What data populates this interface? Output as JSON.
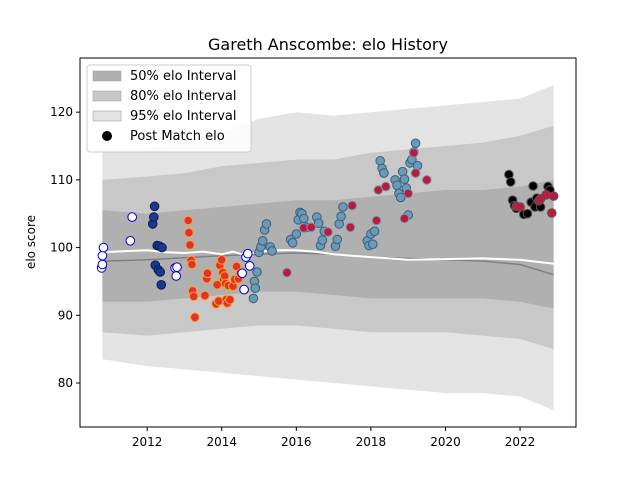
{
  "chart_data": {
    "type": "scatter",
    "title": "Gareth Anscombe: elo History",
    "xlabel": "",
    "ylabel": "elo score",
    "xlim": [
      2010.2,
      2023.5
    ],
    "ylim": [
      73.5,
      128
    ],
    "x_ticks": [
      2012,
      2014,
      2016,
      2018,
      2020,
      2022
    ],
    "y_ticks": [
      80,
      90,
      100,
      110,
      120
    ],
    "grid": false,
    "legend_position": "top-left",
    "legend": [
      {
        "label": "50% elo Interval",
        "kind": "patch",
        "color": "#b0b0b0"
      },
      {
        "label": "80% elo Interval",
        "kind": "patch",
        "color": "#c8c8c8"
      },
      {
        "label": "95% elo Interval",
        "kind": "patch",
        "color": "#e3e3e3"
      },
      {
        "label": "Post Match elo",
        "kind": "marker",
        "color": "#000000"
      }
    ],
    "bands": [
      {
        "name": "95% elo Interval",
        "color": "#e3e3e3",
        "x": [
          2010.8,
          2012.0,
          2013.0,
          2014.0,
          2015.0,
          2016.0,
          2017.0,
          2018.0,
          2019.0,
          2020.0,
          2021.0,
          2022.0,
          2022.9
        ],
        "lower": [
          83.5,
          82.5,
          82.0,
          81.5,
          81.0,
          80.5,
          80.0,
          79.5,
          79.0,
          78.5,
          78.5,
          78.0,
          76.0
        ],
        "upper": [
          114.0,
          114.5,
          116.0,
          117.0,
          119.0,
          120.0,
          119.5,
          120.0,
          120.5,
          121.0,
          121.5,
          122.0,
          124.0
        ]
      },
      {
        "name": "80% elo Interval",
        "color": "#c8c8c8",
        "x": [
          2010.8,
          2012.0,
          2013.0,
          2014.0,
          2015.0,
          2016.0,
          2017.0,
          2018.0,
          2019.0,
          2020.0,
          2021.0,
          2022.0,
          2022.9
        ],
        "lower": [
          87.5,
          87.0,
          87.5,
          88.0,
          88.5,
          88.5,
          88.0,
          87.5,
          87.5,
          87.5,
          87.0,
          86.5,
          85.0
        ],
        "upper": [
          110.0,
          110.5,
          111.0,
          112.0,
          112.5,
          113.0,
          113.0,
          114.0,
          114.5,
          115.0,
          115.5,
          116.5,
          118.0
        ]
      },
      {
        "name": "50% elo Interval",
        "color": "#b0b0b0",
        "x": [
          2010.8,
          2012.0,
          2013.0,
          2014.0,
          2015.0,
          2016.0,
          2017.0,
          2018.0,
          2019.0,
          2020.0,
          2021.0,
          2022.0,
          2022.9
        ],
        "lower": [
          92.0,
          92.0,
          92.5,
          93.0,
          93.5,
          93.5,
          93.0,
          92.5,
          92.5,
          92.5,
          92.5,
          92.0,
          91.0
        ],
        "upper": [
          105.5,
          105.0,
          105.5,
          106.0,
          106.5,
          107.0,
          107.0,
          107.5,
          108.0,
          108.5,
          108.5,
          109.0,
          110.0
        ]
      }
    ],
    "lines": [
      {
        "name": "",
        "color": "#808080",
        "x": [
          2010.8,
          2012.0,
          2013.0,
          2014.0,
          2015.0,
          2016.0,
          2017.0,
          2018.0,
          2019.0,
          2020.0,
          2021.0,
          2022.0,
          2022.9
        ],
        "y": [
          98.0,
          98.2,
          98.5,
          98.8,
          99.0,
          99.2,
          99.0,
          98.6,
          98.4,
          98.2,
          98.0,
          97.5,
          96.0
        ]
      },
      {
        "name": "",
        "color": "#ffffff",
        "x": [
          2010.8,
          2011.5,
          2012.0,
          2012.5,
          2013.0,
          2013.5,
          2014.0,
          2014.3,
          2014.6,
          2015.0,
          2015.5,
          2016.0,
          2016.5,
          2017.0,
          2017.5,
          2018.0,
          2018.5,
          2019.0,
          2020.0,
          2021.0,
          2022.0,
          2022.9
        ],
        "y": [
          99.3,
          99.5,
          99.6,
          99.3,
          99.2,
          99.4,
          99.0,
          99.4,
          98.9,
          99.4,
          99.6,
          99.6,
          99.4,
          99.0,
          98.8,
          98.6,
          98.4,
          98.2,
          98.3,
          98.4,
          98.2,
          97.6
        ]
      }
    ],
    "series": [
      {
        "name": "period-2010",
        "fill": "#ffffff",
        "edge": "#0000cc",
        "points": [
          [
            2010.78,
            97.0
          ],
          [
            2010.8,
            97.5
          ],
          [
            2010.8,
            98.8
          ],
          [
            2010.83,
            100.0
          ],
          [
            2011.55,
            101.0
          ],
          [
            2011.6,
            104.5
          ],
          [
            2012.75,
            97.0
          ],
          [
            2012.78,
            95.8
          ],
          [
            2012.8,
            97.1
          ]
        ]
      },
      {
        "name": "period-2012",
        "fill": "#1a3a8c",
        "edge": "#0a1a5a",
        "points": [
          [
            2012.15,
            103.5
          ],
          [
            2012.18,
            104.5
          ],
          [
            2012.2,
            106.1
          ],
          [
            2012.22,
            97.4
          ],
          [
            2012.27,
            100.3
          ],
          [
            2012.3,
            96.7
          ],
          [
            2012.33,
            100.2
          ],
          [
            2012.35,
            96.4
          ],
          [
            2012.38,
            94.5
          ],
          [
            2012.4,
            100.0
          ]
        ]
      },
      {
        "name": "period-2013",
        "fill": "#e53030",
        "edge": "#f5a623",
        "points": [
          [
            2013.1,
            104.0
          ],
          [
            2013.12,
            102.2
          ],
          [
            2013.15,
            100.4
          ],
          [
            2013.18,
            98.1
          ],
          [
            2013.2,
            97.5
          ],
          [
            2013.22,
            93.6
          ],
          [
            2013.25,
            92.8
          ],
          [
            2013.28,
            89.7
          ],
          [
            2013.55,
            92.9
          ],
          [
            2013.6,
            95.4
          ],
          [
            2013.62,
            96.2
          ],
          [
            2013.85,
            91.7
          ],
          [
            2013.88,
            94.5
          ],
          [
            2013.92,
            92.1
          ],
          [
            2013.95,
            97.4
          ],
          [
            2014.0,
            98.2
          ],
          [
            2014.03,
            96.3
          ],
          [
            2014.05,
            95.3
          ],
          [
            2014.08,
            95.8
          ],
          [
            2014.1,
            94.7
          ],
          [
            2014.12,
            92.3
          ],
          [
            2014.15,
            91.8
          ],
          [
            2014.18,
            94.4
          ],
          [
            2014.22,
            92.3
          ],
          [
            2014.3,
            94.3
          ],
          [
            2014.35,
            95.3
          ],
          [
            2014.4,
            97.2
          ],
          [
            2014.45,
            95.4
          ],
          [
            2014.5,
            96.2
          ]
        ]
      },
      {
        "name": "period-2014",
        "fill": "#ffffff",
        "edge": "#0000cc",
        "points": [
          [
            2014.55,
            96.2
          ],
          [
            2014.6,
            93.8
          ],
          [
            2014.65,
            98.6
          ],
          [
            2014.7,
            99.1
          ],
          [
            2014.75,
            97.3
          ]
        ]
      },
      {
        "name": "period-2015",
        "fill": "#6b9ab8",
        "edge": "#3a5f7a",
        "points": [
          [
            2014.85,
            92.5
          ],
          [
            2014.88,
            95.0
          ],
          [
            2014.9,
            94.0
          ],
          [
            2014.95,
            96.4
          ],
          [
            2015.0,
            99.3
          ],
          [
            2015.05,
            100.1
          ],
          [
            2015.1,
            101.0
          ],
          [
            2015.15,
            102.6
          ],
          [
            2015.2,
            103.5
          ],
          [
            2015.3,
            100.1
          ],
          [
            2015.35,
            99.5
          ],
          [
            2015.85,
            101.2
          ],
          [
            2015.9,
            100.7
          ],
          [
            2016.0,
            102.0
          ],
          [
            2016.05,
            104.1
          ],
          [
            2016.1,
            105.2
          ],
          [
            2016.15,
            105.0
          ],
          [
            2016.2,
            104.3
          ],
          [
            2016.28,
            103.0
          ],
          [
            2016.55,
            104.5
          ],
          [
            2016.6,
            103.6
          ],
          [
            2016.65,
            100.3
          ],
          [
            2016.7,
            101.1
          ],
          [
            2016.75,
            102.4
          ],
          [
            2017.05,
            100.2
          ],
          [
            2017.1,
            101.2
          ],
          [
            2017.15,
            103.5
          ],
          [
            2017.2,
            104.6
          ],
          [
            2017.25,
            106.0
          ],
          [
            2017.9,
            101.0
          ],
          [
            2017.95,
            100.3
          ],
          [
            2018.0,
            102.0
          ],
          [
            2018.05,
            100.5
          ],
          [
            2018.1,
            102.4
          ],
          [
            2018.25,
            112.8
          ],
          [
            2018.3,
            111.7
          ],
          [
            2018.35,
            111.0
          ],
          [
            2018.65,
            110.0
          ],
          [
            2018.7,
            109.2
          ],
          [
            2018.75,
            108.0
          ],
          [
            2018.8,
            107.4
          ],
          [
            2018.85,
            111.2
          ],
          [
            2018.9,
            110.1
          ],
          [
            2018.95,
            108.8
          ],
          [
            2019.0,
            104.8
          ],
          [
            2019.05,
            112.5
          ],
          [
            2019.1,
            113.0
          ],
          [
            2019.15,
            114.1
          ],
          [
            2019.2,
            115.4
          ],
          [
            2019.25,
            112.1
          ]
        ]
      },
      {
        "name": "period-2016",
        "fill": "#c0183a",
        "edge": "#6b9ab8",
        "points": [
          [
            2015.75,
            96.3
          ],
          [
            2016.2,
            102.9
          ],
          [
            2016.4,
            103.0
          ],
          [
            2016.85,
            102.3
          ],
          [
            2017.45,
            103.0
          ],
          [
            2017.5,
            106.2
          ],
          [
            2018.15,
            104.0
          ],
          [
            2018.2,
            108.5
          ],
          [
            2018.4,
            109.0
          ],
          [
            2019.0,
            108.0
          ],
          [
            2018.9,
            104.3
          ],
          [
            2019.15,
            114.0
          ],
          [
            2019.2,
            111.0
          ],
          [
            2019.5,
            110.0
          ]
        ]
      },
      {
        "name": "period-2021",
        "fill": "#000000",
        "edge": "#555555",
        "points": [
          [
            2021.7,
            110.8
          ],
          [
            2021.75,
            109.7
          ],
          [
            2021.8,
            107.0
          ],
          [
            2021.85,
            106.2
          ],
          [
            2021.9,
            105.8
          ],
          [
            2022.1,
            104.9
          ],
          [
            2022.2,
            105.0
          ],
          [
            2022.3,
            106.7
          ],
          [
            2022.35,
            109.1
          ],
          [
            2022.4,
            106.0
          ],
          [
            2022.45,
            107.3
          ],
          [
            2022.55,
            106.0
          ],
          [
            2022.75,
            109.0
          ],
          [
            2022.8,
            108.5
          ]
        ]
      },
      {
        "name": "period-2022",
        "fill": "#c0183a",
        "edge": "#555555",
        "points": [
          [
            2021.9,
            106.1
          ],
          [
            2022.0,
            106.0
          ],
          [
            2022.5,
            106.9
          ],
          [
            2022.55,
            107.2
          ],
          [
            2022.7,
            107.8
          ],
          [
            2022.85,
            105.1
          ],
          [
            2022.9,
            107.6
          ]
        ]
      }
    ]
  }
}
